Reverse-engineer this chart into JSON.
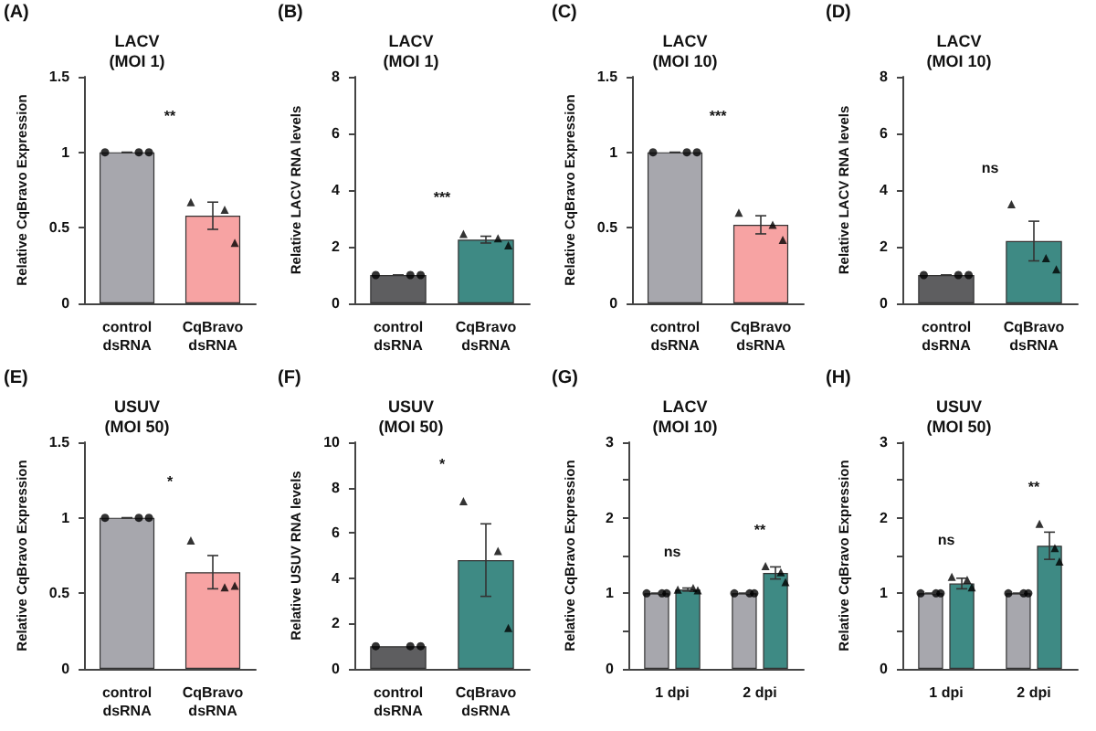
{
  "chart_data": [
    {
      "type": "bar",
      "title": "LACV\n(MOI 1)",
      "ylabel": "Relative CqBravo Expression",
      "categories": [
        "control\ndsRNA",
        "CqBravo\ndsRNA"
      ],
      "ylim": [
        0,
        1.5
      ],
      "yticks": [
        0,
        0.5,
        1.0,
        1.5
      ],
      "grid": false,
      "series": [
        {
          "type": "bar",
          "colors": [
            "#a7a7ad",
            "#f7a3a3"
          ],
          "values": [
            1.0,
            0.58
          ],
          "errors": [
            0,
            0.09
          ]
        },
        {
          "type": "scatter",
          "color": "#000000",
          "marker": "circle",
          "x": [
            "control\ndsRNA",
            "control\ndsRNA",
            "control\ndsRNA"
          ],
          "values": [
            1.0,
            1.0,
            1.0
          ]
        },
        {
          "type": "scatter",
          "color": "#000000",
          "marker": "triangle",
          "x": [
            "CqBravo\ndsRNA",
            "CqBravo\ndsRNA",
            "CqBravo\ndsRNA"
          ],
          "values": [
            0.67,
            0.62,
            0.4
          ]
        }
      ],
      "annotations": [
        "(A)",
        "**"
      ]
    },
    {
      "type": "bar",
      "title": "LACV\n(MOI 1)",
      "ylabel": "Relative LACV RNA levels",
      "categories": [
        "control\ndsRNA",
        "CqBravo\ndsRNA"
      ],
      "ylim": [
        0,
        8
      ],
      "yticks": [
        0,
        2,
        4,
        6,
        8
      ],
      "grid": false,
      "series": [
        {
          "type": "bar",
          "colors": [
            "#5e5e60",
            "#3e8a84"
          ],
          "values": [
            1.0,
            2.25
          ],
          "errors": [
            0,
            0.12
          ]
        },
        {
          "type": "scatter",
          "color": "#000000",
          "marker": "circle",
          "x": [
            "control\ndsRNA",
            "control\ndsRNA",
            "control\ndsRNA"
          ],
          "values": [
            1.0,
            1.0,
            1.0
          ]
        },
        {
          "type": "scatter",
          "color": "#000000",
          "marker": "triangle",
          "x": [
            "CqBravo\ndsRNA",
            "CqBravo\ndsRNA",
            "CqBravo\ndsRNA"
          ],
          "values": [
            2.45,
            2.3,
            2.05
          ]
        }
      ],
      "annotations": [
        "(B)",
        "***"
      ]
    },
    {
      "type": "bar",
      "title": "LACV\n(MOI 10)",
      "ylabel": "Relative CqBravo Expression",
      "categories": [
        "control\ndsRNA",
        "CqBravo\ndsRNA"
      ],
      "ylim": [
        0,
        1.5
      ],
      "yticks": [
        0,
        0.5,
        1.0,
        1.5
      ],
      "grid": false,
      "series": [
        {
          "type": "bar",
          "colors": [
            "#a7a7ad",
            "#f7a3a3"
          ],
          "values": [
            1.0,
            0.52
          ],
          "errors": [
            0,
            0.06
          ]
        },
        {
          "type": "scatter",
          "color": "#000000",
          "marker": "circle",
          "x": [
            "control\ndsRNA",
            "control\ndsRNA",
            "control\ndsRNA"
          ],
          "values": [
            1.0,
            1.0,
            1.0
          ]
        },
        {
          "type": "scatter",
          "color": "#000000",
          "marker": "triangle",
          "x": [
            "CqBravo\ndsRNA",
            "CqBravo\ndsRNA",
            "CqBravo\ndsRNA"
          ],
          "values": [
            0.6,
            0.52,
            0.42
          ]
        }
      ],
      "annotations": [
        "(C)",
        "***"
      ]
    },
    {
      "type": "bar",
      "title": "LACV\n(MOI 10)",
      "ylabel": "Relative LACV RNA levels",
      "categories": [
        "control\ndsRNA",
        "CqBravo\ndsRNA"
      ],
      "ylim": [
        0,
        8
      ],
      "yticks": [
        0,
        2,
        4,
        6,
        8
      ],
      "grid": false,
      "series": [
        {
          "type": "bar",
          "colors": [
            "#5e5e60",
            "#3e8a84"
          ],
          "values": [
            1.0,
            2.2
          ],
          "errors": [
            0,
            0.7
          ]
        },
        {
          "type": "scatter",
          "color": "#000000",
          "marker": "circle",
          "x": [
            "control\ndsRNA",
            "control\ndsRNA",
            "control\ndsRNA"
          ],
          "values": [
            1.0,
            1.0,
            1.0
          ]
        },
        {
          "type": "scatter",
          "color": "#000000",
          "marker": "triangle",
          "x": [
            "CqBravo\ndsRNA",
            "CqBravo\ndsRNA",
            "CqBravo\ndsRNA"
          ],
          "values": [
            3.5,
            1.6,
            1.2
          ]
        }
      ],
      "annotations": [
        "(D)",
        "ns"
      ]
    },
    {
      "type": "bar",
      "title": "USUV\n(MOI 50)",
      "ylabel": "Relative CqBravo Expression",
      "categories": [
        "control\ndsRNA",
        "CqBravo\ndsRNA"
      ],
      "ylim": [
        0,
        1.5
      ],
      "yticks": [
        0,
        0.5,
        1.0,
        1.5
      ],
      "grid": false,
      "series": [
        {
          "type": "bar",
          "colors": [
            "#a7a7ad",
            "#f7a3a3"
          ],
          "values": [
            1.0,
            0.64
          ],
          "errors": [
            0,
            0.11
          ]
        },
        {
          "type": "scatter",
          "color": "#000000",
          "marker": "circle",
          "x": [
            "control\ndsRNA",
            "control\ndsRNA",
            "control\ndsRNA"
          ],
          "values": [
            1.0,
            1.0,
            1.0
          ]
        },
        {
          "type": "scatter",
          "color": "#000000",
          "marker": "triangle",
          "x": [
            "CqBravo\ndsRNA",
            "CqBravo\ndsRNA",
            "CqBravo\ndsRNA"
          ],
          "values": [
            0.85,
            0.54,
            0.55
          ]
        }
      ],
      "annotations": [
        "(E)",
        "*"
      ]
    },
    {
      "type": "bar",
      "title": "USUV\n(MOI 50)",
      "ylabel": "Relative USUV RNA levels",
      "categories": [
        "control\ndsRNA",
        "CqBravo\ndsRNA"
      ],
      "ylim": [
        0,
        10
      ],
      "yticks": [
        0,
        2,
        4,
        6,
        8,
        10
      ],
      "grid": false,
      "series": [
        {
          "type": "bar",
          "colors": [
            "#5e5e60",
            "#3e8a84"
          ],
          "values": [
            1.0,
            4.8
          ],
          "errors": [
            null,
            1.6
          ]
        },
        {
          "type": "scatter",
          "color": "#000000",
          "marker": "circle",
          "x": [
            "control\ndsRNA",
            "control\ndsRNA",
            "control\ndsRNA"
          ],
          "values": [
            1.0,
            1.0,
            1.0
          ]
        },
        {
          "type": "scatter",
          "color": "#000000",
          "marker": "triangle",
          "x": [
            "CqBravo\ndsRNA",
            "CqBravo\ndsRNA",
            "CqBravo\ndsRNA"
          ],
          "values": [
            7.4,
            5.2,
            1.8
          ]
        }
      ],
      "annotations": [
        "(F)",
        "*"
      ]
    },
    {
      "type": "bar",
      "title": "LACV\n(MOI 10)",
      "ylabel": "Relative CqBravo Expression",
      "categories": [
        "1 dpi",
        "2 dpi"
      ],
      "ylim": [
        0,
        3
      ],
      "yticks": [
        0,
        {
          "value": 0.5,
          "label": null
        },
        1,
        {
          "value": 1.5,
          "label": null
        },
        2,
        {
          "value": 2.5,
          "label": null
        },
        3
      ],
      "grid": false,
      "series": [
        {
          "type": "bar",
          "color": "#a7a7ad",
          "values": [
            1.0,
            1.0
          ],
          "errors": [
            0,
            0
          ]
        },
        {
          "type": "bar",
          "color": "#3e8a84",
          "values": [
            1.05,
            1.27
          ],
          "errors": [
            0.02,
            0.08
          ]
        },
        {
          "type": "scatter",
          "color": "#000000",
          "marker": "circle",
          "x": [
            "1 dpi",
            "1 dpi",
            "1 dpi",
            "2 dpi",
            "2 dpi",
            "2 dpi"
          ],
          "values": [
            1.0,
            1.0,
            1.0,
            1.0,
            1.0,
            1.0
          ]
        },
        {
          "type": "scatter",
          "color": "#000000",
          "marker": "triangle",
          "x": [
            "1 dpi",
            "1 dpi",
            "1 dpi",
            "2 dpi",
            "2 dpi",
            "2 dpi"
          ],
          "values": [
            1.05,
            1.07,
            1.04,
            1.36,
            1.28,
            1.15
          ]
        }
      ],
      "annotations": [
        "(G)",
        "ns",
        "**"
      ]
    },
    {
      "type": "bar",
      "title": "USUV\n(MOI 50)",
      "ylabel": "Relative CqBravo Expression",
      "categories": [
        "1 dpi",
        "2 dpi"
      ],
      "ylim": [
        0,
        3
      ],
      "yticks": [
        0,
        {
          "value": 0.5,
          "label": null
        },
        1,
        {
          "value": 1.5,
          "label": null
        },
        2,
        {
          "value": 2.5,
          "label": null
        },
        3
      ],
      "grid": false,
      "series": [
        {
          "type": "bar",
          "color": "#a7a7ad",
          "values": [
            1.0,
            1.0
          ],
          "errors": [
            0,
            0
          ]
        },
        {
          "type": "bar",
          "color": "#3e8a84",
          "values": [
            1.13,
            1.63
          ],
          "errors": [
            0.07,
            0.18
          ]
        },
        {
          "type": "scatter",
          "color": "#000000",
          "marker": "circle",
          "x": [
            "1 dpi",
            "1 dpi",
            "1 dpi",
            "2 dpi",
            "2 dpi",
            "2 dpi"
          ],
          "values": [
            1.0,
            1.0,
            1.0,
            1.0,
            1.0,
            1.0
          ]
        },
        {
          "type": "scatter",
          "color": "#000000",
          "marker": "triangle",
          "x": [
            "1 dpi",
            "1 dpi",
            "1 dpi",
            "2 dpi",
            "2 dpi",
            "2 dpi"
          ],
          "values": [
            1.22,
            1.18,
            1.08,
            1.92,
            1.6,
            1.42
          ]
        }
      ],
      "annotations": [
        "(H)",
        "ns",
        "**"
      ]
    }
  ]
}
